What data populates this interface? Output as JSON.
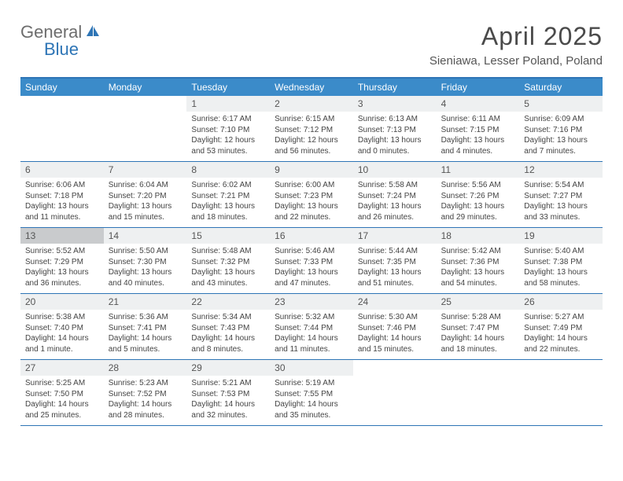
{
  "logo": {
    "text1": "General",
    "text2": "Blue"
  },
  "title": "April 2025",
  "subtitle": "Sieniawa, Lesser Poland, Poland",
  "colors": {
    "header_bar": "#3b8bc9",
    "border": "#2e75b6",
    "daynum_bg": "#eef0f1",
    "highlight_bg": "#c9cbcd",
    "logo_gray": "#6d6d6d",
    "logo_blue": "#2e75b6"
  },
  "weekdays": [
    "Sunday",
    "Monday",
    "Tuesday",
    "Wednesday",
    "Thursday",
    "Friday",
    "Saturday"
  ],
  "weeks": [
    [
      {
        "empty": true
      },
      {
        "empty": true
      },
      {
        "n": "1",
        "sunrise": "Sunrise: 6:17 AM",
        "sunset": "Sunset: 7:10 PM",
        "daylight": "Daylight: 12 hours and 53 minutes."
      },
      {
        "n": "2",
        "sunrise": "Sunrise: 6:15 AM",
        "sunset": "Sunset: 7:12 PM",
        "daylight": "Daylight: 12 hours and 56 minutes."
      },
      {
        "n": "3",
        "sunrise": "Sunrise: 6:13 AM",
        "sunset": "Sunset: 7:13 PM",
        "daylight": "Daylight: 13 hours and 0 minutes."
      },
      {
        "n": "4",
        "sunrise": "Sunrise: 6:11 AM",
        "sunset": "Sunset: 7:15 PM",
        "daylight": "Daylight: 13 hours and 4 minutes."
      },
      {
        "n": "5",
        "sunrise": "Sunrise: 6:09 AM",
        "sunset": "Sunset: 7:16 PM",
        "daylight": "Daylight: 13 hours and 7 minutes."
      }
    ],
    [
      {
        "n": "6",
        "sunrise": "Sunrise: 6:06 AM",
        "sunset": "Sunset: 7:18 PM",
        "daylight": "Daylight: 13 hours and 11 minutes."
      },
      {
        "n": "7",
        "sunrise": "Sunrise: 6:04 AM",
        "sunset": "Sunset: 7:20 PM",
        "daylight": "Daylight: 13 hours and 15 minutes."
      },
      {
        "n": "8",
        "sunrise": "Sunrise: 6:02 AM",
        "sunset": "Sunset: 7:21 PM",
        "daylight": "Daylight: 13 hours and 18 minutes."
      },
      {
        "n": "9",
        "sunrise": "Sunrise: 6:00 AM",
        "sunset": "Sunset: 7:23 PM",
        "daylight": "Daylight: 13 hours and 22 minutes."
      },
      {
        "n": "10",
        "sunrise": "Sunrise: 5:58 AM",
        "sunset": "Sunset: 7:24 PM",
        "daylight": "Daylight: 13 hours and 26 minutes."
      },
      {
        "n": "11",
        "sunrise": "Sunrise: 5:56 AM",
        "sunset": "Sunset: 7:26 PM",
        "daylight": "Daylight: 13 hours and 29 minutes."
      },
      {
        "n": "12",
        "sunrise": "Sunrise: 5:54 AM",
        "sunset": "Sunset: 7:27 PM",
        "daylight": "Daylight: 13 hours and 33 minutes."
      }
    ],
    [
      {
        "n": "13",
        "highlight": true,
        "sunrise": "Sunrise: 5:52 AM",
        "sunset": "Sunset: 7:29 PM",
        "daylight": "Daylight: 13 hours and 36 minutes."
      },
      {
        "n": "14",
        "sunrise": "Sunrise: 5:50 AM",
        "sunset": "Sunset: 7:30 PM",
        "daylight": "Daylight: 13 hours and 40 minutes."
      },
      {
        "n": "15",
        "sunrise": "Sunrise: 5:48 AM",
        "sunset": "Sunset: 7:32 PM",
        "daylight": "Daylight: 13 hours and 43 minutes."
      },
      {
        "n": "16",
        "sunrise": "Sunrise: 5:46 AM",
        "sunset": "Sunset: 7:33 PM",
        "daylight": "Daylight: 13 hours and 47 minutes."
      },
      {
        "n": "17",
        "sunrise": "Sunrise: 5:44 AM",
        "sunset": "Sunset: 7:35 PM",
        "daylight": "Daylight: 13 hours and 51 minutes."
      },
      {
        "n": "18",
        "sunrise": "Sunrise: 5:42 AM",
        "sunset": "Sunset: 7:36 PM",
        "daylight": "Daylight: 13 hours and 54 minutes."
      },
      {
        "n": "19",
        "sunrise": "Sunrise: 5:40 AM",
        "sunset": "Sunset: 7:38 PM",
        "daylight": "Daylight: 13 hours and 58 minutes."
      }
    ],
    [
      {
        "n": "20",
        "sunrise": "Sunrise: 5:38 AM",
        "sunset": "Sunset: 7:40 PM",
        "daylight": "Daylight: 14 hours and 1 minute."
      },
      {
        "n": "21",
        "sunrise": "Sunrise: 5:36 AM",
        "sunset": "Sunset: 7:41 PM",
        "daylight": "Daylight: 14 hours and 5 minutes."
      },
      {
        "n": "22",
        "sunrise": "Sunrise: 5:34 AM",
        "sunset": "Sunset: 7:43 PM",
        "daylight": "Daylight: 14 hours and 8 minutes."
      },
      {
        "n": "23",
        "sunrise": "Sunrise: 5:32 AM",
        "sunset": "Sunset: 7:44 PM",
        "daylight": "Daylight: 14 hours and 11 minutes."
      },
      {
        "n": "24",
        "sunrise": "Sunrise: 5:30 AM",
        "sunset": "Sunset: 7:46 PM",
        "daylight": "Daylight: 14 hours and 15 minutes."
      },
      {
        "n": "25",
        "sunrise": "Sunrise: 5:28 AM",
        "sunset": "Sunset: 7:47 PM",
        "daylight": "Daylight: 14 hours and 18 minutes."
      },
      {
        "n": "26",
        "sunrise": "Sunrise: 5:27 AM",
        "sunset": "Sunset: 7:49 PM",
        "daylight": "Daylight: 14 hours and 22 minutes."
      }
    ],
    [
      {
        "n": "27",
        "sunrise": "Sunrise: 5:25 AM",
        "sunset": "Sunset: 7:50 PM",
        "daylight": "Daylight: 14 hours and 25 minutes."
      },
      {
        "n": "28",
        "sunrise": "Sunrise: 5:23 AM",
        "sunset": "Sunset: 7:52 PM",
        "daylight": "Daylight: 14 hours and 28 minutes."
      },
      {
        "n": "29",
        "sunrise": "Sunrise: 5:21 AM",
        "sunset": "Sunset: 7:53 PM",
        "daylight": "Daylight: 14 hours and 32 minutes."
      },
      {
        "n": "30",
        "sunrise": "Sunrise: 5:19 AM",
        "sunset": "Sunset: 7:55 PM",
        "daylight": "Daylight: 14 hours and 35 minutes."
      },
      {
        "empty": true
      },
      {
        "empty": true
      },
      {
        "empty": true
      }
    ]
  ]
}
